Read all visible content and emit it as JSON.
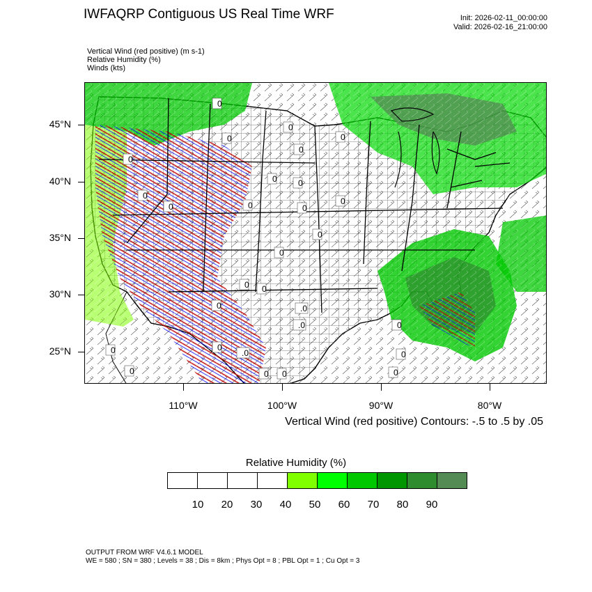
{
  "header": {
    "title": "IWFAQRP Contiguous US Real Time WRF",
    "init": "Init: 2026-02-11_00:00:00",
    "valid": "Valid: 2026-02-16_21:00:00"
  },
  "fields": [
    "Vertical Wind (red positive)   (m s-1)",
    "Relative Humidity   (%)",
    "Winds   (kts)"
  ],
  "map": {
    "lat_labels": [
      "45°N",
      "40°N",
      "35°N",
      "30°N",
      "25°N"
    ],
    "lon_labels": [
      "110°W",
      "100°W",
      "90°W",
      "80°W"
    ],
    "contour_note": "Vertical Wind (red positive) Contours: -.5 to .5 by .05",
    "contour_labels": [
      "0",
      "0",
      "0",
      "0",
      "0",
      "0",
      "0",
      "0",
      "0",
      "0",
      "0",
      "0",
      "0",
      "0",
      "0",
      "0",
      "0",
      "0",
      ".0",
      ".0",
      "0",
      ".0",
      "0",
      "0",
      "0",
      "0",
      "0",
      "0",
      "0"
    ]
  },
  "colorbar": {
    "title": "Relative Humidity  (%)",
    "ticks": [
      "10",
      "20",
      "30",
      "40",
      "50",
      "60",
      "70",
      "80",
      "90"
    ],
    "colors": [
      "#ffffff",
      "#ffffff",
      "#ffffff",
      "#ffffff",
      "#7fff00",
      "#00ff00",
      "#00c800",
      "#009600",
      "#2e8b2e",
      "#548b54"
    ]
  },
  "footer": {
    "line1": "OUTPUT FROM WRF V4.6.1 MODEL",
    "line2": "WE = 580 ; SN = 380 ; Levels = 38 ; Dis = 8km ; Phys Opt = 8 ; PBL Opt = 1 ; Cu Opt = 3"
  },
  "colors": {
    "humid_light": "#7fff00",
    "humid_mid": "#00c800",
    "humid_dark": "#548b54",
    "updraft": "#c00000",
    "downdraft": "#0000ff",
    "borders": "#000000"
  }
}
